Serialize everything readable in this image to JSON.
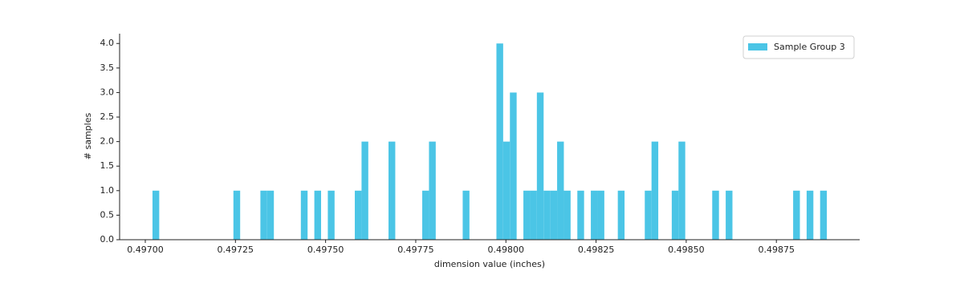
{
  "chart_data": {
    "type": "histogram",
    "xlabel": "dimension value (inches)",
    "ylabel": "# samples",
    "series": [
      {
        "name": "Sample Group 3",
        "color": "#4bc5e6",
        "bins": [
          0.49702,
          0.4970387,
          0.4970574,
          0.4970761,
          0.4970948,
          0.4971135,
          0.4971322,
          0.4971509,
          0.4971696,
          0.4971883,
          0.497207,
          0.4972257,
          0.4972444,
          0.4972631,
          0.4972818,
          0.4973005,
          0.4973192,
          0.4973379,
          0.4973566,
          0.4973753,
          0.497394,
          0.4974127,
          0.4974314,
          0.4974501,
          0.4974688,
          0.4974875,
          0.4975062,
          0.4975249,
          0.4975436,
          0.4975623,
          0.497581,
          0.4975997,
          0.4976184,
          0.4976371,
          0.4976558,
          0.4976745,
          0.4976932,
          0.4977119,
          0.4977306,
          0.4977493,
          0.497768,
          0.4977867,
          0.4978054,
          0.4978241,
          0.4978428,
          0.4978615,
          0.4978802,
          0.4978989,
          0.4979176,
          0.4979363,
          0.497955,
          0.4979737,
          0.4979924,
          0.4980111,
          0.4980298,
          0.4980485,
          0.4980672,
          0.4980859,
          0.4981046,
          0.4981233,
          0.498142,
          0.4981607,
          0.4981794,
          0.4981981,
          0.4982168,
          0.4982355,
          0.4982542,
          0.4982729,
          0.4982916,
          0.4983103,
          0.498329,
          0.4983477,
          0.4983664,
          0.4983851,
          0.4984038,
          0.4984225,
          0.4984412,
          0.4984599,
          0.4984786,
          0.4984973,
          0.498516,
          0.4985347,
          0.4985534,
          0.4985721,
          0.4985908,
          0.4986095,
          0.4986282,
          0.4986469,
          0.4986656,
          0.4986843,
          0.498703,
          0.4987217,
          0.4987404,
          0.4987591,
          0.4987778,
          0.4987965,
          0.4988152,
          0.4988339,
          0.4988526,
          0.4988713,
          0.49889
        ],
        "counts": [
          1,
          0,
          0,
          0,
          0,
          0,
          0,
          0,
          0,
          0,
          0,
          0,
          1,
          0,
          0,
          0,
          1,
          1,
          0,
          0,
          0,
          0,
          1,
          0,
          1,
          0,
          1,
          0,
          0,
          0,
          1,
          2,
          0,
          0,
          0,
          2,
          0,
          0,
          0,
          0,
          1,
          2,
          0,
          0,
          0,
          0,
          1,
          0,
          0,
          0,
          0,
          4,
          2,
          3,
          0,
          1,
          1,
          3,
          1,
          1,
          2,
          1,
          0,
          1,
          0,
          1,
          1,
          0,
          0,
          1,
          0,
          0,
          0,
          1,
          2,
          0,
          0,
          1,
          2,
          0,
          0,
          0,
          0,
          1,
          0,
          1,
          0,
          0,
          0,
          0,
          0,
          0,
          0,
          0,
          0,
          1,
          0,
          1,
          0,
          1
        ]
      }
    ],
    "xlim": [
      0.4969288,
      0.498981
    ],
    "xticks": [
      {
        "value": 0.497,
        "label": "0.49700"
      },
      {
        "value": 0.49725,
        "label": "0.49725"
      },
      {
        "value": 0.4975,
        "label": "0.49750"
      },
      {
        "value": 0.49775,
        "label": "0.49775"
      },
      {
        "value": 0.498,
        "label": "0.49800"
      },
      {
        "value": 0.49825,
        "label": "0.49825"
      },
      {
        "value": 0.4985,
        "label": "0.49850"
      },
      {
        "value": 0.49875,
        "label": "0.49875"
      }
    ],
    "ylim": [
      0,
      4.2
    ],
    "yticks": [
      {
        "value": 0,
        "label": "0.0"
      },
      {
        "value": 0.5,
        "label": "0.5"
      },
      {
        "value": 1,
        "label": "1.0"
      },
      {
        "value": 1.5,
        "label": "1.5"
      },
      {
        "value": 2,
        "label": "2.0"
      },
      {
        "value": 2.5,
        "label": "2.5"
      },
      {
        "value": 3,
        "label": "3.0"
      },
      {
        "value": 3.5,
        "label": "3.5"
      },
      {
        "value": 4,
        "label": "4.0"
      }
    ],
    "legend": "upper right"
  }
}
